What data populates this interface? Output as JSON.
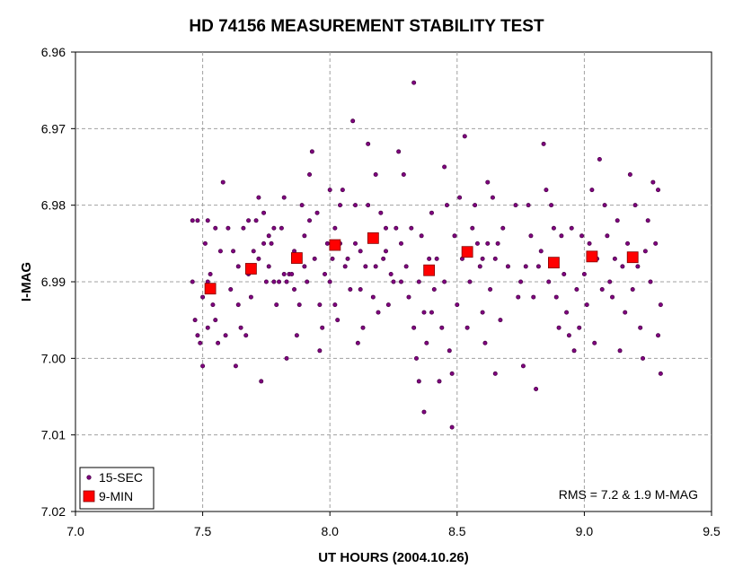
{
  "chart_data": {
    "type": "scatter",
    "title": "HD 74156 MEASUREMENT STABILITY TEST",
    "xlabel": "UT HOURS (2004.10.26)",
    "ylabel": "I-MAG",
    "xlim": [
      7.0,
      9.5
    ],
    "ylim": [
      6.96,
      7.02
    ],
    "y_inverted": true,
    "x_ticks": [
      "7.0",
      "7.5",
      "8.0",
      "8.5",
      "9.0",
      "9.5"
    ],
    "y_ticks": [
      "6.96",
      "6.97",
      "6.98",
      "6.99",
      "7.00",
      "7.01",
      "7.02"
    ],
    "grid": "dashed",
    "legend_position": "bottom-left",
    "annotation": "RMS = 7.2 & 1.9 M-MAG",
    "series": [
      {
        "name": "15-SEC",
        "marker": "dot",
        "color": "#800080",
        "points": [
          [
            7.46,
            6.982
          ],
          [
            7.46,
            6.99
          ],
          [
            7.47,
            6.995
          ],
          [
            7.48,
            6.997
          ],
          [
            7.48,
            6.982
          ],
          [
            7.49,
            6.998
          ],
          [
            7.5,
            6.992
          ],
          [
            7.5,
            7.001
          ],
          [
            7.51,
            6.985
          ],
          [
            7.52,
            6.99
          ],
          [
            7.52,
            6.996
          ],
          [
            7.52,
            6.982
          ],
          [
            7.53,
            6.989
          ],
          [
            7.54,
            6.993
          ],
          [
            7.55,
            6.995
          ],
          [
            7.55,
            6.983
          ],
          [
            7.56,
            6.998
          ],
          [
            7.57,
            6.986
          ],
          [
            7.58,
            6.977
          ],
          [
            7.59,
            6.997
          ],
          [
            7.6,
            6.983
          ],
          [
            7.61,
            6.991
          ],
          [
            7.62,
            6.986
          ],
          [
            7.63,
            7.001
          ],
          [
            7.64,
            6.988
          ],
          [
            7.64,
            6.993
          ],
          [
            7.65,
            6.996
          ],
          [
            7.66,
            6.983
          ],
          [
            7.67,
            6.997
          ],
          [
            7.68,
            6.982
          ],
          [
            7.68,
            6.989
          ],
          [
            7.69,
            6.992
          ],
          [
            7.7,
            6.986
          ],
          [
            7.71,
            6.982
          ],
          [
            7.72,
            6.979
          ],
          [
            7.72,
            6.987
          ],
          [
            7.73,
            7.003
          ],
          [
            7.74,
            6.985
          ],
          [
            7.74,
            6.981
          ],
          [
            7.75,
            6.99
          ],
          [
            7.76,
            6.988
          ],
          [
            7.76,
            6.984
          ],
          [
            7.77,
            6.985
          ],
          [
            7.78,
            6.983
          ],
          [
            7.78,
            6.99
          ],
          [
            7.79,
            6.993
          ],
          [
            7.8,
            6.99
          ],
          [
            7.81,
            6.983
          ],
          [
            7.82,
            6.989
          ],
          [
            7.82,
            6.979
          ],
          [
            7.83,
            7.0
          ],
          [
            7.83,
            6.99
          ],
          [
            7.84,
            6.989
          ],
          [
            7.85,
            6.989
          ],
          [
            7.86,
            6.991
          ],
          [
            7.86,
            6.986
          ],
          [
            7.87,
            6.997
          ],
          [
            7.88,
            6.993
          ],
          [
            7.89,
            6.98
          ],
          [
            7.9,
            6.988
          ],
          [
            7.9,
            6.984
          ],
          [
            7.91,
            6.99
          ],
          [
            7.92,
            6.976
          ],
          [
            7.92,
            6.982
          ],
          [
            7.93,
            6.973
          ],
          [
            7.94,
            6.987
          ],
          [
            7.95,
            6.981
          ],
          [
            7.96,
            6.999
          ],
          [
            7.96,
            6.993
          ],
          [
            7.97,
            6.996
          ],
          [
            7.98,
            6.989
          ],
          [
            7.99,
            6.985
          ],
          [
            8.0,
            6.978
          ],
          [
            8.0,
            6.99
          ],
          [
            8.01,
            6.987
          ],
          [
            8.02,
            6.983
          ],
          [
            8.02,
            6.993
          ],
          [
            8.03,
            6.995
          ],
          [
            8.04,
            6.98
          ],
          [
            8.04,
            6.985
          ],
          [
            8.05,
            6.978
          ],
          [
            8.06,
            6.988
          ],
          [
            8.07,
            6.987
          ],
          [
            8.08,
            6.991
          ],
          [
            8.09,
            6.969
          ],
          [
            8.1,
            6.98
          ],
          [
            8.1,
            6.985
          ],
          [
            8.11,
            6.998
          ],
          [
            8.12,
            6.986
          ],
          [
            8.12,
            6.991
          ],
          [
            8.13,
            6.996
          ],
          [
            8.14,
            6.988
          ],
          [
            8.15,
            6.98
          ],
          [
            8.15,
            6.972
          ],
          [
            8.16,
            6.984
          ],
          [
            8.17,
            6.992
          ],
          [
            8.18,
            6.976
          ],
          [
            8.18,
            6.988
          ],
          [
            8.19,
            6.994
          ],
          [
            8.2,
            6.981
          ],
          [
            8.21,
            6.987
          ],
          [
            8.22,
            6.986
          ],
          [
            8.22,
            6.983
          ],
          [
            8.23,
            6.993
          ],
          [
            8.24,
            6.989
          ],
          [
            8.25,
            6.99
          ],
          [
            8.26,
            6.983
          ],
          [
            8.27,
            6.973
          ],
          [
            8.28,
            6.99
          ],
          [
            8.28,
            6.985
          ],
          [
            8.29,
            6.976
          ],
          [
            8.3,
            6.988
          ],
          [
            8.31,
            6.992
          ],
          [
            8.32,
            6.983
          ],
          [
            8.33,
            6.964
          ],
          [
            8.33,
            6.996
          ],
          [
            8.34,
            7.0
          ],
          [
            8.35,
            6.99
          ],
          [
            8.35,
            7.003
          ],
          [
            8.36,
            6.984
          ],
          [
            8.37,
            6.994
          ],
          [
            8.37,
            7.007
          ],
          [
            8.38,
            6.998
          ],
          [
            8.39,
            6.987
          ],
          [
            8.4,
            6.994
          ],
          [
            8.4,
            6.981
          ],
          [
            8.41,
            6.991
          ],
          [
            8.42,
            6.987
          ],
          [
            8.43,
            7.003
          ],
          [
            8.44,
            6.996
          ],
          [
            8.45,
            6.99
          ],
          [
            8.45,
            6.975
          ],
          [
            8.46,
            6.98
          ],
          [
            8.47,
            6.999
          ],
          [
            8.48,
            7.002
          ],
          [
            8.48,
            7.009
          ],
          [
            8.49,
            6.984
          ],
          [
            8.5,
            6.993
          ],
          [
            8.51,
            6.979
          ],
          [
            8.52,
            6.987
          ],
          [
            8.53,
            6.971
          ],
          [
            8.54,
            6.996
          ],
          [
            8.55,
            6.99
          ],
          [
            8.56,
            6.983
          ],
          [
            8.57,
            6.98
          ],
          [
            8.58,
            6.985
          ],
          [
            8.59,
            6.988
          ],
          [
            8.6,
            6.987
          ],
          [
            8.6,
            6.994
          ],
          [
            8.61,
            6.998
          ],
          [
            8.62,
            6.985
          ],
          [
            8.62,
            6.977
          ],
          [
            8.63,
            6.991
          ],
          [
            8.64,
            6.979
          ],
          [
            8.65,
            6.987
          ],
          [
            8.65,
            7.002
          ],
          [
            8.66,
            6.985
          ],
          [
            8.67,
            6.995
          ],
          [
            8.68,
            6.983
          ],
          [
            8.7,
            6.988
          ],
          [
            8.73,
            6.98
          ],
          [
            8.74,
            6.992
          ],
          [
            8.75,
            6.99
          ],
          [
            8.76,
            7.001
          ],
          [
            8.77,
            6.988
          ],
          [
            8.78,
            6.98
          ],
          [
            8.79,
            6.984
          ],
          [
            8.8,
            6.992
          ],
          [
            8.81,
            7.004
          ],
          [
            8.82,
            6.988
          ],
          [
            8.83,
            6.986
          ],
          [
            8.84,
            6.972
          ],
          [
            8.85,
            6.978
          ],
          [
            8.86,
            6.99
          ],
          [
            8.87,
            6.98
          ],
          [
            8.88,
            6.983
          ],
          [
            8.89,
            6.992
          ],
          [
            8.9,
            6.996
          ],
          [
            8.91,
            6.984
          ],
          [
            8.92,
            6.989
          ],
          [
            8.93,
            6.994
          ],
          [
            8.94,
            6.997
          ],
          [
            8.95,
            6.983
          ],
          [
            8.96,
            6.999
          ],
          [
            8.97,
            6.991
          ],
          [
            8.98,
            6.996
          ],
          [
            8.99,
            6.984
          ],
          [
            9.0,
            6.989
          ],
          [
            9.01,
            6.993
          ],
          [
            9.02,
            6.985
          ],
          [
            9.03,
            6.978
          ],
          [
            9.04,
            6.998
          ],
          [
            9.05,
            6.987
          ],
          [
            9.06,
            6.974
          ],
          [
            9.07,
            6.991
          ],
          [
            9.08,
            6.98
          ],
          [
            9.09,
            6.984
          ],
          [
            9.1,
            6.99
          ],
          [
            9.11,
            6.992
          ],
          [
            9.12,
            6.987
          ],
          [
            9.13,
            6.982
          ],
          [
            9.14,
            6.999
          ],
          [
            9.15,
            6.988
          ],
          [
            9.16,
            6.994
          ],
          [
            9.17,
            6.985
          ],
          [
            9.18,
            6.976
          ],
          [
            9.19,
            6.991
          ],
          [
            9.2,
            6.98
          ],
          [
            9.21,
            6.988
          ],
          [
            9.22,
            6.996
          ],
          [
            9.23,
            7.0
          ],
          [
            9.24,
            6.986
          ],
          [
            9.25,
            6.982
          ],
          [
            9.26,
            6.99
          ],
          [
            9.27,
            6.977
          ],
          [
            9.28,
            6.985
          ],
          [
            9.29,
            6.978
          ],
          [
            9.29,
            6.997
          ],
          [
            9.3,
            6.993
          ],
          [
            9.3,
            7.002
          ]
        ]
      },
      {
        "name": "9-MIN",
        "marker": "square",
        "color": "#ff0000",
        "points": [
          [
            7.53,
            6.9909
          ],
          [
            7.69,
            6.9883
          ],
          [
            7.87,
            6.9869
          ],
          [
            8.02,
            6.9852
          ],
          [
            8.17,
            6.9843
          ],
          [
            8.39,
            6.9885
          ],
          [
            8.54,
            6.9861
          ],
          [
            8.88,
            6.9875
          ],
          [
            9.03,
            6.9867
          ],
          [
            9.19,
            6.9868
          ]
        ]
      }
    ]
  }
}
